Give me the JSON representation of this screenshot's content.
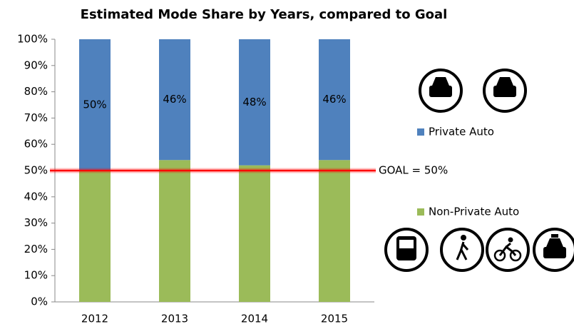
{
  "chart_data": {
    "type": "stacked_bar",
    "title": "Estimated Mode Share by Years, compared to Goal",
    "categories": [
      "2012",
      "2013",
      "2014",
      "2015"
    ],
    "series": [
      {
        "name": "Non-Private Auto",
        "color": "#9bbb59",
        "values": [
          50,
          54,
          52,
          54
        ]
      },
      {
        "name": "Private Auto",
        "color": "#4f81bd",
        "values": [
          50,
          46,
          48,
          46
        ],
        "value_labels": [
          "50%",
          "46%",
          "48%",
          "46%"
        ]
      }
    ],
    "ylim": [
      0,
      100
    ],
    "yticks": [
      {
        "value": 0,
        "label": "0%"
      },
      {
        "value": 10,
        "label": "10%"
      },
      {
        "value": 20,
        "label": "20%"
      },
      {
        "value": 30,
        "label": "30%"
      },
      {
        "value": 40,
        "label": "40%"
      },
      {
        "value": 50,
        "label": "50%"
      },
      {
        "value": 60,
        "label": "60%"
      },
      {
        "value": 70,
        "label": "70%"
      },
      {
        "value": 80,
        "label": "80%"
      },
      {
        "value": 90,
        "label": "90%"
      },
      {
        "value": 100,
        "label": "100%"
      }
    ],
    "goal": {
      "value": 50,
      "label": "GOAL = 50%",
      "color": "#ff0000"
    }
  }
}
